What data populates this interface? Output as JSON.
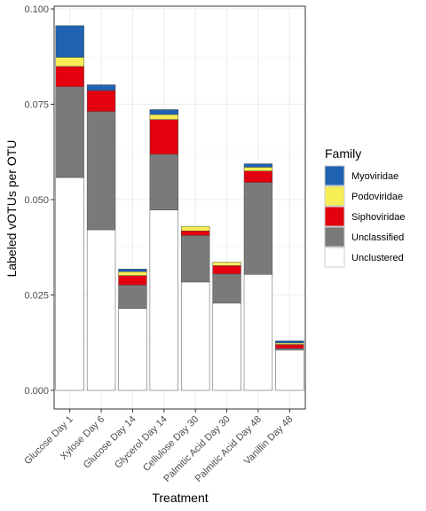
{
  "chart_data": {
    "type": "bar",
    "stacked": true,
    "xlabel": "Treatment",
    "ylabel": "Labeled vOTUs per OTU",
    "ylim": [
      0,
      0.1
    ],
    "yticks": [
      "0.000",
      "0.025",
      "0.050",
      "0.075",
      "0.100"
    ],
    "grid": true,
    "legend_placement": "right",
    "legend_title": "Family",
    "categories": [
      "Glucose Day 1",
      "Xylose Day 6",
      "Glucose Day 14",
      "Glycerol Day 14",
      "Cellulose Day 30",
      "Palmitic Acid Day 30",
      "Palmitic Acid Day 48",
      "Vanillin Day 48"
    ],
    "series": [
      {
        "name": "Unclustered",
        "color": "#ffffff",
        "values": [
          0.0558,
          0.0421,
          0.0215,
          0.0473,
          0.0284,
          0.0229,
          0.0304,
          0.0106
        ]
      },
      {
        "name": "Unclassified",
        "color": "#7a7a7a",
        "values": [
          0.0238,
          0.031,
          0.0061,
          0.0146,
          0.0122,
          0.0076,
          0.0241,
          0.0004
        ]
      },
      {
        "name": "Siphoviridae",
        "color": "#e3000f",
        "values": [
          0.0053,
          0.0055,
          0.0025,
          0.0091,
          0.0012,
          0.0022,
          0.003,
          0.001
        ]
      },
      {
        "name": "Podoviridae",
        "color": "#f7ee55",
        "values": [
          0.0024,
          0.0,
          0.001,
          0.0013,
          0.0012,
          0.0009,
          0.001,
          0.0004
        ]
      },
      {
        "name": "Myoviridae",
        "color": "#1f63b0",
        "values": [
          0.0083,
          0.0015,
          0.0007,
          0.0013,
          0.0,
          0.0,
          0.0009,
          0.0006
        ]
      }
    ]
  }
}
